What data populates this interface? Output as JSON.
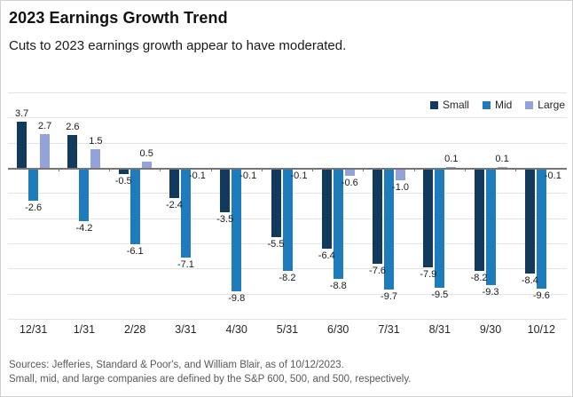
{
  "header": {
    "title": "2023 Earnings Growth Trend",
    "subtitle": "Cuts to 2023 earnings growth appear to have moderated."
  },
  "colors": {
    "small": "#123A5C",
    "mid": "#1E7CBD",
    "large": "#93A2D8",
    "zero_axis": "#757575",
    "gridline": "#e4e4e4"
  },
  "chart_data": {
    "type": "bar",
    "title": "2023 Earnings Growth Trend",
    "categories": [
      "12/31",
      "1/31",
      "2/28",
      "3/31",
      "4/30",
      "5/31",
      "6/30",
      "7/31",
      "8/31",
      "9/30",
      "10/12"
    ],
    "series": [
      {
        "name": "Small",
        "color": "#123A5C",
        "values": [
          3.7,
          2.6,
          -0.5,
          -2.4,
          -3.5,
          -5.5,
          -6.4,
          -7.6,
          -7.9,
          -8.2,
          -8.4
        ]
      },
      {
        "name": "Mid",
        "color": "#1E7CBD",
        "values": [
          -2.6,
          -4.2,
          -6.1,
          -7.1,
          -9.8,
          -8.2,
          -8.8,
          -9.7,
          -9.5,
          -9.3,
          -9.6
        ]
      },
      {
        "name": "Large",
        "color": "#93A2D8",
        "values": [
          2.7,
          1.5,
          0.5,
          -0.1,
          -0.1,
          -0.1,
          -0.6,
          -1.0,
          0.1,
          0.1,
          -0.1
        ]
      }
    ],
    "xlabel": "",
    "ylabel": "",
    "ylim": [
      -12,
      6
    ],
    "grid_step": 2,
    "grid": true,
    "y_tick_labels_shown": false,
    "data_labels": true,
    "data_label_format": "one_decimal",
    "legend_position": "top-right"
  },
  "footer": {
    "line1": "Sources: Jefferies, Standard & Poor's, and William Blair, as of 10/12/2023.",
    "line2": "Small, mid, and large companies are defined by the S&P 600, 500, and 500, respectively."
  }
}
